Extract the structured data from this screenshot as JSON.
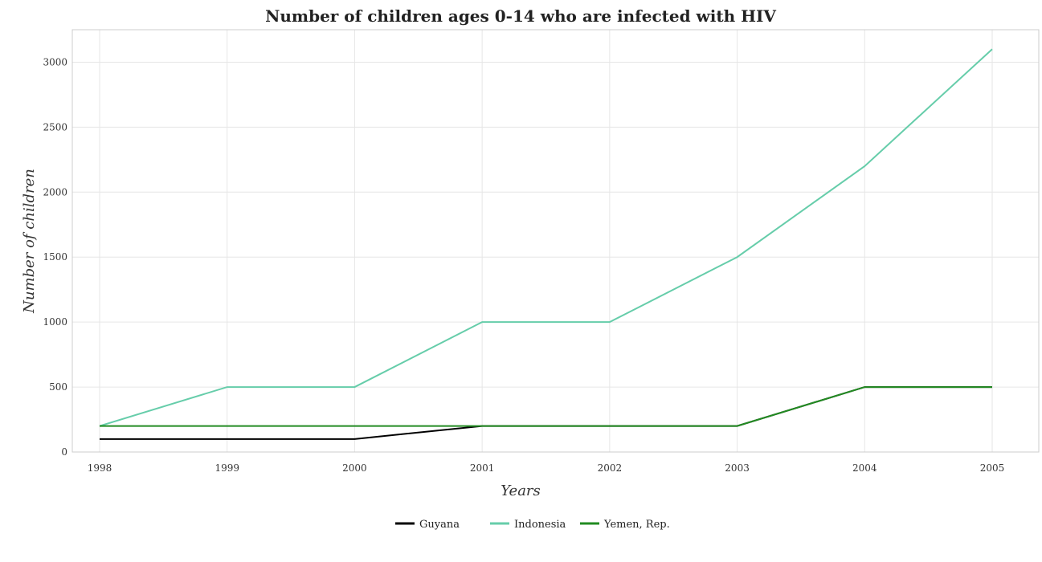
{
  "chart_data": {
    "type": "line",
    "title": "Number of children ages 0-14 who are infected with HIV",
    "xlabel": "Years",
    "ylabel": "Number of children",
    "x": [
      "1998",
      "1999",
      "2000",
      "2001",
      "2002",
      "2003",
      "2004",
      "2005"
    ],
    "ylim": [
      0,
      3250
    ],
    "yticks": [
      0,
      500,
      1000,
      1500,
      2000,
      2500,
      3000
    ],
    "grid": true,
    "legend_position": "bottom-center",
    "series": [
      {
        "name": "Guyana",
        "color": "#000000",
        "values": [
          100,
          100,
          100,
          200,
          200,
          200,
          500,
          500
        ]
      },
      {
        "name": "Indonesia",
        "color": "#66cdaa",
        "values": [
          200,
          500,
          500,
          1000,
          1000,
          1500,
          2200,
          3100
        ]
      },
      {
        "name": "Yemen, Rep.",
        "color": "#228b22",
        "values": [
          200,
          200,
          200,
          200,
          200,
          200,
          500,
          500
        ]
      }
    ]
  }
}
